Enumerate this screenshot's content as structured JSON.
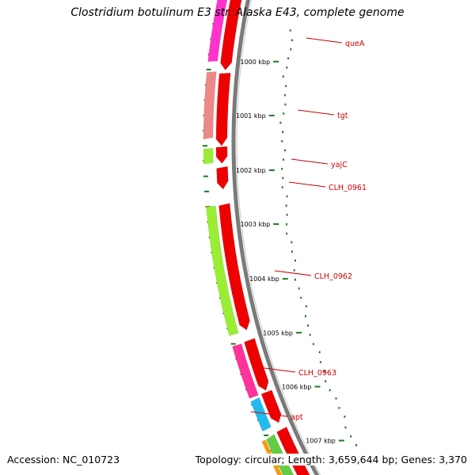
{
  "title": "Clostridium botulinum E3 str. Alaska E43, complete genome",
  "footer": {
    "accession": "Accession: NC_010723",
    "topology": "Topology: circular; Length: 3,659,644 bp; Genes: 3,370"
  },
  "ticks": [
    {
      "label": "1000 kbp"
    },
    {
      "label": "1001 kbp"
    },
    {
      "label": "1002 kbp"
    },
    {
      "label": "1003 kbp"
    },
    {
      "label": "1004 kbp"
    },
    {
      "label": "1005 kbp"
    },
    {
      "label": "1006 kbp"
    },
    {
      "label": "1007 kbp"
    }
  ],
  "genes": [
    {
      "name": "queA"
    },
    {
      "name": "tgt"
    },
    {
      "name": "yajC"
    },
    {
      "name": "CLH_0961"
    },
    {
      "name": "CLH_0962"
    },
    {
      "name": "CLH_0963"
    },
    {
      "name": "apt"
    }
  ],
  "colors": {
    "backbone": "#7a7a7a",
    "cds": "#ee0000",
    "tick": "#1a7a1a",
    "label": "#cc0000",
    "queA_ring": "#ff33cc",
    "tgt_ring": "#ee8888",
    "yajC_ring": "#99ee33",
    "CLH_0962_ring": "#99ee33",
    "CLH_0963_ring": "#ff3399",
    "apt_ring": "#22bbee",
    "orange_ring": "#ff9900",
    "green_ring": "#66cc44"
  }
}
